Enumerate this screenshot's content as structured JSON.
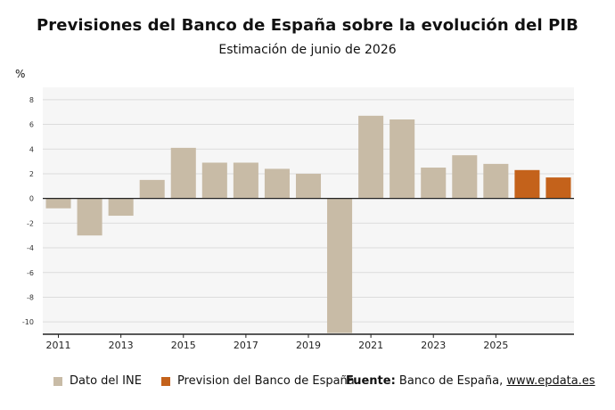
{
  "header": {
    "title": "Previsiones del Banco de España sobre la evolución del PIB",
    "subtitle": "Estimación de junio de 2026"
  },
  "chart_data": {
    "type": "bar",
    "yunit": "%",
    "ylim": [
      -11,
      9
    ],
    "yticks": [
      8,
      6,
      4,
      2,
      0,
      -2,
      -4,
      -6,
      -8,
      -10
    ],
    "ytick_labels": [
      "8",
      "6",
      "4",
      "2",
      "0",
      "-2",
      "-4",
      "-6",
      "-8",
      "-10"
    ],
    "grid": true,
    "categories": [
      2011,
      2012,
      2013,
      2014,
      2015,
      2016,
      2017,
      2018,
      2019,
      2020,
      2021,
      2022,
      2023,
      2024,
      2025,
      2026,
      2027
    ],
    "xtick_labels": [
      "2011",
      "2013",
      "2015",
      "2017",
      "2019",
      "2021",
      "2023",
      "2025"
    ],
    "series": [
      {
        "name": "Dato del INE",
        "color": "#c8bba6",
        "values": [
          -0.8,
          -3.0,
          -1.4,
          1.5,
          4.1,
          2.9,
          2.9,
          2.4,
          2.0,
          -10.9,
          6.7,
          6.4,
          2.5,
          3.5,
          2.8,
          null,
          null
        ]
      },
      {
        "name": "Prevision del Banco de España",
        "color": "#c4621b",
        "values": [
          null,
          null,
          null,
          null,
          null,
          null,
          null,
          null,
          null,
          null,
          null,
          null,
          null,
          null,
          null,
          2.3,
          1.7
        ]
      }
    ]
  },
  "legend": {
    "item1": "Dato del INE",
    "item2": "Prevision del Banco de España"
  },
  "source": {
    "label": "Fuente:",
    "text": " Banco de España, ",
    "link": "www.epdata.es"
  }
}
